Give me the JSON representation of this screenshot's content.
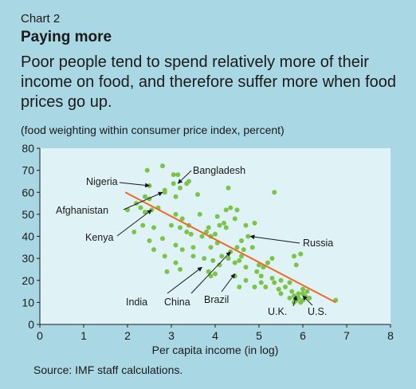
{
  "header": {
    "chart_label": "Chart 2",
    "title": "Paying more",
    "subtitle": "Poor people tend to spend relatively more of their income on food, and therefore suffer more when food prices go up.",
    "note": "(food weighting within consumer price index, percent)"
  },
  "source": "Source: IMF staff calculations.",
  "colors": {
    "background": "#a9d8e4",
    "plot_area": "#dff2f6",
    "points": "#7cc34a",
    "trend_line": "#ee6a24"
  },
  "chart_data": {
    "type": "scatter",
    "xlabel": "Per capita income (in log)",
    "ylabel": "",
    "xlim": [
      0,
      8
    ],
    "ylim": [
      0,
      80
    ],
    "x_ticks": [
      0,
      1,
      2,
      3,
      4,
      5,
      6,
      7,
      8
    ],
    "y_ticks": [
      0,
      10,
      20,
      30,
      40,
      50,
      60,
      70,
      80
    ],
    "grid": false,
    "trend_line": {
      "x": [
        1.95,
        6.75
      ],
      "y": [
        60,
        10
      ]
    },
    "annotations": [
      {
        "label": "Nigeria",
        "x": 2.5,
        "y": 63
      },
      {
        "label": "Bangladesh",
        "x": 3.15,
        "y": 64
      },
      {
        "label": "Afghanistan",
        "x": 2.8,
        "y": 60
      },
      {
        "label": "Kenya",
        "x": 2.55,
        "y": 52
      },
      {
        "label": "Russia",
        "x": 4.8,
        "y": 40
      },
      {
        "label": "India",
        "x": 3.7,
        "y": 26
      },
      {
        "label": "China",
        "x": 4.35,
        "y": 33
      },
      {
        "label": "Brazil",
        "x": 4.45,
        "y": 23
      },
      {
        "label": "U.K.",
        "x": 5.85,
        "y": 13
      },
      {
        "label": "U.S.",
        "x": 6.0,
        "y": 13
      }
    ],
    "points": [
      [
        2.45,
        70
      ],
      [
        2.8,
        72
      ],
      [
        3.05,
        68
      ],
      [
        3.15,
        68
      ],
      [
        3.35,
        64
      ],
      [
        3.05,
        64
      ],
      [
        3.2,
        62
      ],
      [
        2.5,
        63
      ],
      [
        2.4,
        58
      ],
      [
        2.5,
        57
      ],
      [
        2.2,
        55
      ],
      [
        2.3,
        53
      ],
      [
        2.0,
        52
      ],
      [
        2.4,
        51
      ],
      [
        2.55,
        52
      ],
      [
        2.7,
        53
      ],
      [
        2.85,
        60
      ],
      [
        2.85,
        61
      ],
      [
        3.1,
        58
      ],
      [
        3.6,
        59
      ],
      [
        4.3,
        62
      ],
      [
        2.15,
        42
      ],
      [
        2.35,
        45
      ],
      [
        2.6,
        44
      ],
      [
        2.5,
        38
      ],
      [
        2.6,
        34
      ],
      [
        2.8,
        39
      ],
      [
        3.0,
        45
      ],
      [
        3.1,
        50
      ],
      [
        3.25,
        48
      ],
      [
        3.2,
        44
      ],
      [
        3.35,
        42
      ],
      [
        3.4,
        45
      ],
      [
        3.1,
        36
      ],
      [
        3.25,
        34
      ],
      [
        3.1,
        28
      ],
      [
        2.85,
        31
      ],
      [
        2.9,
        24
      ],
      [
        3.2,
        25
      ],
      [
        3.5,
        35
      ],
      [
        3.5,
        31
      ],
      [
        3.7,
        40
      ],
      [
        3.85,
        44
      ],
      [
        3.9,
        40
      ],
      [
        4.05,
        49
      ],
      [
        4.2,
        46
      ],
      [
        4.25,
        52
      ],
      [
        4.35,
        53
      ],
      [
        4.5,
        52
      ],
      [
        4.45,
        48
      ],
      [
        4.25,
        44
      ],
      [
        4.0,
        41
      ],
      [
        3.75,
        30
      ],
      [
        3.9,
        35
      ],
      [
        3.95,
        29
      ],
      [
        4.05,
        37
      ],
      [
        4.15,
        31
      ],
      [
        3.85,
        24
      ],
      [
        4.0,
        23
      ],
      [
        4.1,
        27
      ],
      [
        4.3,
        30
      ],
      [
        4.35,
        33
      ],
      [
        4.45,
        28
      ],
      [
        4.5,
        35
      ],
      [
        4.55,
        29
      ],
      [
        4.6,
        31
      ],
      [
        4.7,
        26
      ],
      [
        4.65,
        34
      ],
      [
        4.7,
        45
      ],
      [
        4.9,
        46
      ],
      [
        4.75,
        40
      ],
      [
        4.85,
        35
      ],
      [
        4.95,
        24
      ],
      [
        5.0,
        27
      ],
      [
        5.05,
        22
      ],
      [
        5.1,
        26
      ],
      [
        5.2,
        28
      ],
      [
        5.3,
        30
      ],
      [
        4.7,
        20
      ],
      [
        4.9,
        17
      ],
      [
        5.05,
        19
      ],
      [
        5.15,
        17
      ],
      [
        5.3,
        21
      ],
      [
        5.35,
        19
      ],
      [
        5.45,
        16
      ],
      [
        5.5,
        20
      ],
      [
        5.6,
        17
      ],
      [
        5.7,
        19
      ],
      [
        5.75,
        15
      ],
      [
        5.8,
        13
      ],
      [
        5.85,
        11
      ],
      [
        5.9,
        12
      ],
      [
        5.95,
        10
      ],
      [
        6.0,
        14
      ],
      [
        6.05,
        13
      ],
      [
        6.0,
        16
      ],
      [
        6.1,
        15
      ],
      [
        6.15,
        12
      ],
      [
        6.0,
        11
      ],
      [
        5.9,
        14
      ],
      [
        5.85,
        27
      ],
      [
        5.8,
        31
      ],
      [
        5.95,
        32
      ],
      [
        5.35,
        60
      ],
      [
        4.45,
        22
      ],
      [
        3.9,
        22
      ],
      [
        4.55,
        17
      ],
      [
        6.75,
        11
      ],
      [
        5.8,
        10
      ],
      [
        5.7,
        12
      ],
      [
        5.5,
        14
      ],
      [
        3.4,
        65
      ],
      [
        3.65,
        50
      ],
      [
        3.8,
        42
      ],
      [
        4.6,
        38
      ],
      [
        4.1,
        45
      ],
      [
        3.45,
        41
      ]
    ]
  }
}
